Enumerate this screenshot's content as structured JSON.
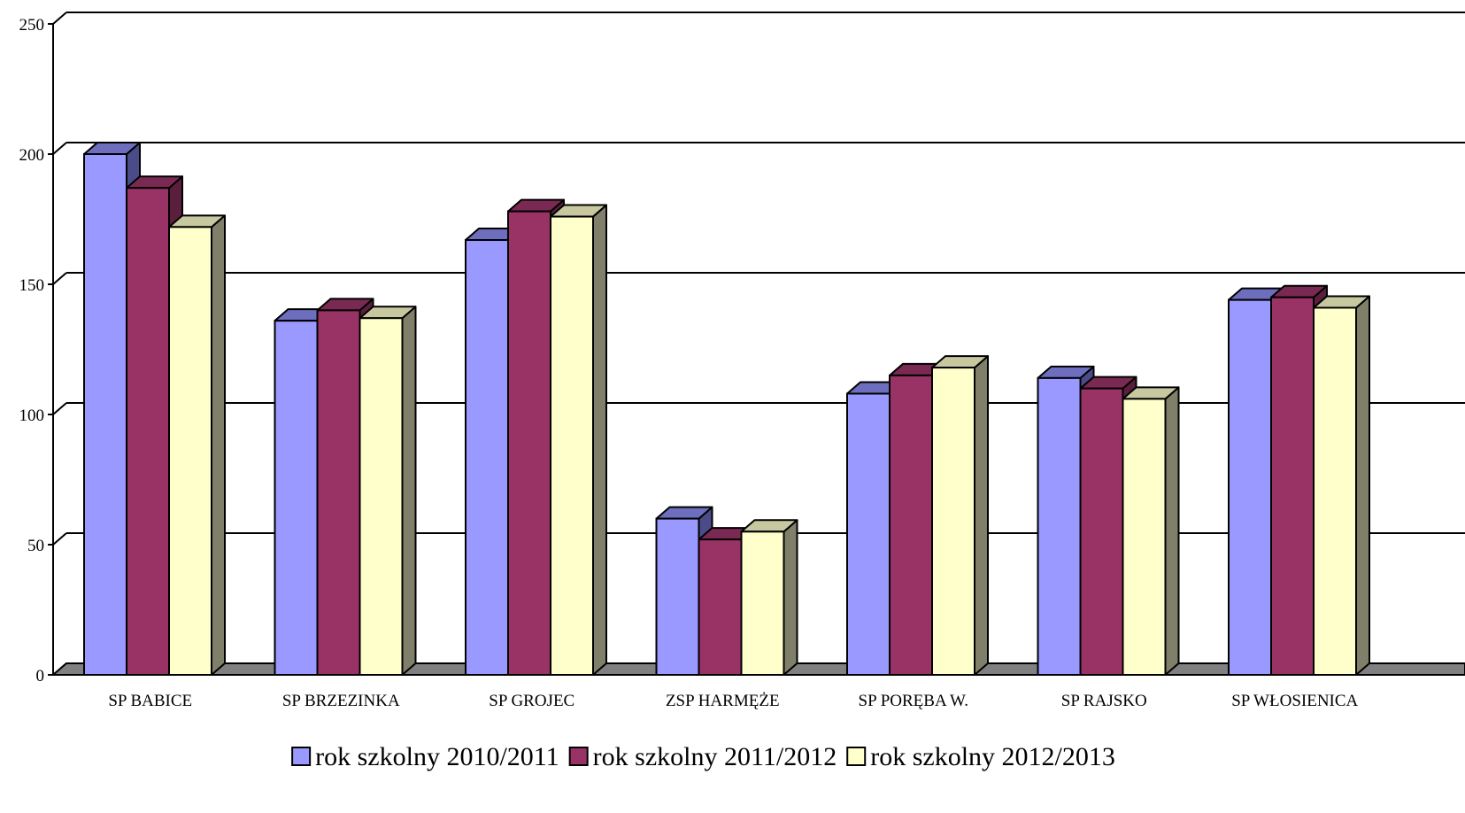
{
  "chart_data": {
    "type": "bar",
    "categories": [
      "SP BABICE",
      "SP BRZEZINKA",
      "SP GROJEC",
      "ZSP HARMĘŻE",
      "SP PORĘBA W.",
      "SP RAJSKO",
      "SP WŁOSIENICA"
    ],
    "series": [
      {
        "name": "rok szkolny 2010/2011",
        "values": [
          200,
          136,
          167,
          60,
          108,
          114,
          144
        ],
        "color": "#9999ff",
        "side": "#4b4b8a",
        "top": "#6e6ebf"
      },
      {
        "name": "rok szkolny 2011/2012",
        "values": [
          187,
          140,
          178,
          52,
          115,
          110,
          145
        ],
        "color": "#993366",
        "side": "#5a1f3c",
        "top": "#7a2a52"
      },
      {
        "name": "rok szkolny 2012/2013",
        "values": [
          172,
          137,
          176,
          55,
          118,
          106,
          141
        ],
        "color": "#ffffcc",
        "side": "#80806a",
        "top": "#c8c8a0"
      }
    ],
    "ylim": [
      0,
      250
    ],
    "yticks": [
      0,
      50,
      100,
      150,
      200,
      250
    ],
    "grid": true,
    "legend": "bottom",
    "floor_color": "#808080"
  }
}
